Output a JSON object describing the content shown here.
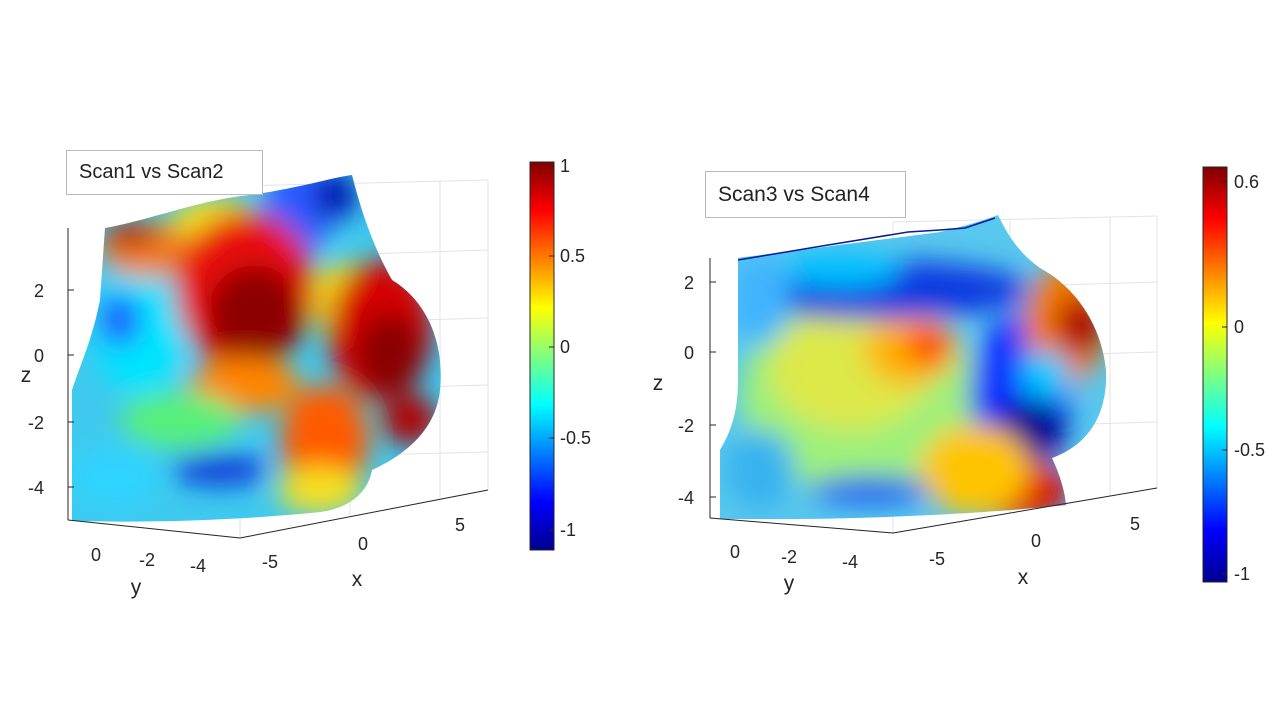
{
  "chart_data": [
    {
      "type": "surface3d",
      "title": "Scan1 vs Scan2",
      "xlabel": "x",
      "ylabel": "y",
      "zlabel": "z",
      "x_ticks": [
        "-5",
        "0",
        "5"
      ],
      "y_ticks": [
        "0",
        "-2",
        "-4"
      ],
      "z_ticks": [
        "2",
        "0",
        "-2",
        "-4"
      ],
      "colorbar": {
        "colormap": "jet",
        "range": [
          -1.1,
          1
        ],
        "ticks": [
          "1",
          "0.5",
          "0",
          "-0.5",
          "-1"
        ]
      }
    },
    {
      "type": "surface3d",
      "title": "Scan3 vs Scan4",
      "xlabel": "x",
      "ylabel": "y",
      "zlabel": "z",
      "x_ticks": [
        "-5",
        "0",
        "5"
      ],
      "y_ticks": [
        "0",
        "-2",
        "-4"
      ],
      "z_ticks": [
        "2",
        "0",
        "-2",
        "-4"
      ],
      "colorbar": {
        "colormap": "jet",
        "range": [
          -1.05,
          0.65
        ],
        "ticks": [
          "0.6",
          "0",
          "-0.5",
          "-1"
        ]
      }
    }
  ]
}
